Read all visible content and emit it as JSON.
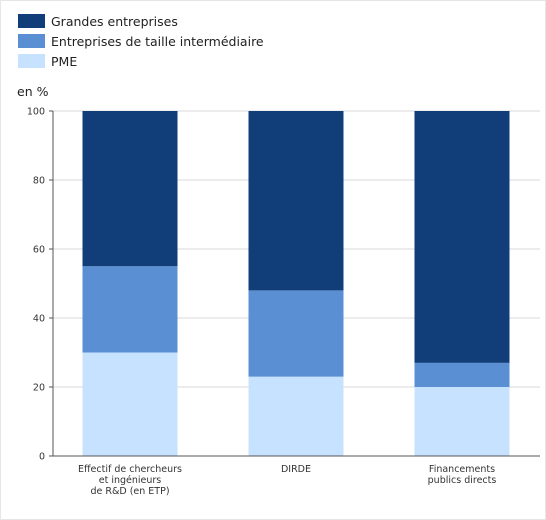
{
  "chart_data": {
    "type": "bar",
    "stacked": true,
    "unit_label": "en %",
    "categories": [
      [
        "Effectif de chercheurs",
        "et ingénieurs",
        "de R&D (en ETP)"
      ],
      [
        "DIRDE"
      ],
      [
        "Financements",
        "publics directs"
      ]
    ],
    "series": [
      {
        "name": "PME",
        "color": "#c6e2ff",
        "values": [
          30,
          23,
          20
        ]
      },
      {
        "name": "Entreprises de taille intermédiaire",
        "color": "#5b8fd4",
        "values": [
          25,
          25,
          7
        ]
      },
      {
        "name": "Grandes entreprises",
        "color": "#113d78",
        "values": [
          45,
          52,
          73
        ]
      }
    ],
    "legend_order": [
      2,
      1,
      0
    ],
    "legend_position": "top-left",
    "ylim": [
      0,
      100
    ],
    "yticks": [
      0,
      20,
      40,
      60,
      80,
      100
    ],
    "grid": true
  }
}
